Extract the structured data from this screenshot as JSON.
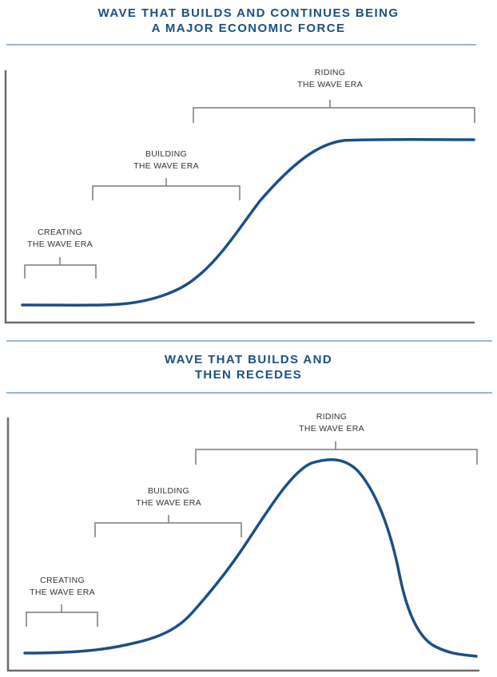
{
  "panels": [
    {
      "title_lines": [
        "WAVE THAT BUILDS AND CONTINUES BEING",
        "A MAJOR ECONOMIC FORCE"
      ],
      "eras": [
        {
          "lines": [
            "CREATING",
            "THE WAVE ERA"
          ]
        },
        {
          "lines": [
            "BUILDING",
            "THE WAVE ERA"
          ]
        },
        {
          "lines": [
            "RIDING",
            "THE WAVE ERA"
          ]
        }
      ]
    },
    {
      "title_lines": [
        "WAVE THAT BUILDS AND",
        "THEN RECEDES"
      ],
      "eras": [
        {
          "lines": [
            "CREATING",
            "THE WAVE ERA"
          ]
        },
        {
          "lines": [
            "BUILDING",
            "THE WAVE ERA"
          ]
        },
        {
          "lines": [
            "RIDING",
            "THE WAVE ERA"
          ]
        }
      ]
    }
  ],
  "colors": {
    "title": "#1b4f86",
    "curve": "#1b4f86",
    "axis": "#6b6b6b",
    "bracket": "#7a7a7a",
    "rule": "#3a6ea5"
  }
}
